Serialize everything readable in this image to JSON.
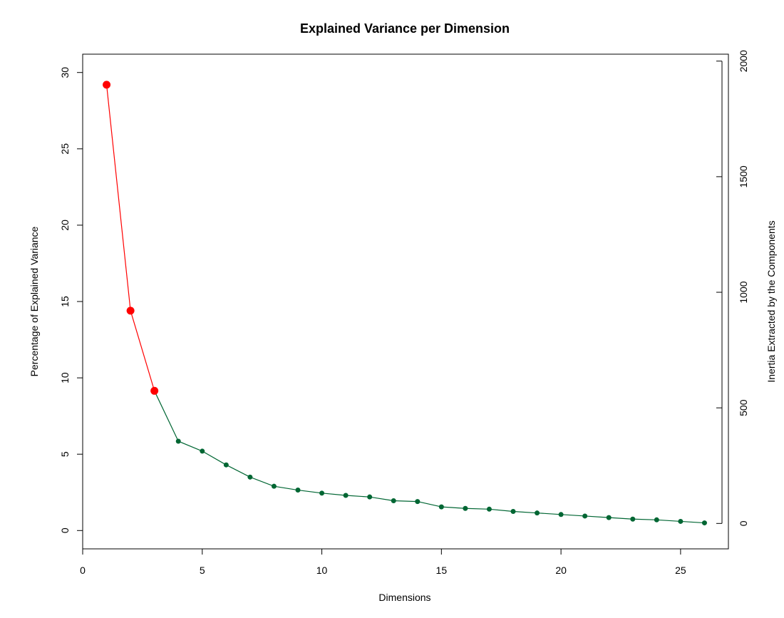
{
  "chart_data": {
    "type": "line",
    "title": "Explained Variance per Dimension",
    "xlabel": "Dimensions",
    "ylabel": "Percentage of Explained Variance",
    "y2label": "Inertia Extracted by the Components",
    "xlim": [
      0,
      27
    ],
    "ylim": [
      -1.2,
      31.2
    ],
    "y2lim": [
      -110,
      2030
    ],
    "x_ticks": [
      0,
      5,
      10,
      15,
      20,
      25
    ],
    "y_ticks": [
      0,
      5,
      10,
      15,
      20,
      25,
      30
    ],
    "y2_ticks": [
      0,
      500,
      1000,
      1500,
      2000
    ],
    "grid": false,
    "x": [
      1,
      2,
      3,
      4,
      5,
      6,
      7,
      8,
      9,
      10,
      11,
      12,
      13,
      14,
      15,
      16,
      17,
      18,
      19,
      20,
      21,
      22,
      23,
      24,
      25,
      26
    ],
    "values": [
      29.2,
      14.4,
      9.15,
      5.85,
      5.2,
      4.3,
      3.5,
      2.9,
      2.65,
      2.45,
      2.3,
      2.2,
      1.95,
      1.9,
      1.55,
      1.45,
      1.4,
      1.25,
      1.15,
      1.05,
      0.95,
      0.85,
      0.75,
      0.7,
      0.6,
      0.5
    ],
    "highlight_count": 3,
    "colors": {
      "highlight": "#ff0000",
      "rest": "#006633",
      "axis": "#000000"
    }
  }
}
